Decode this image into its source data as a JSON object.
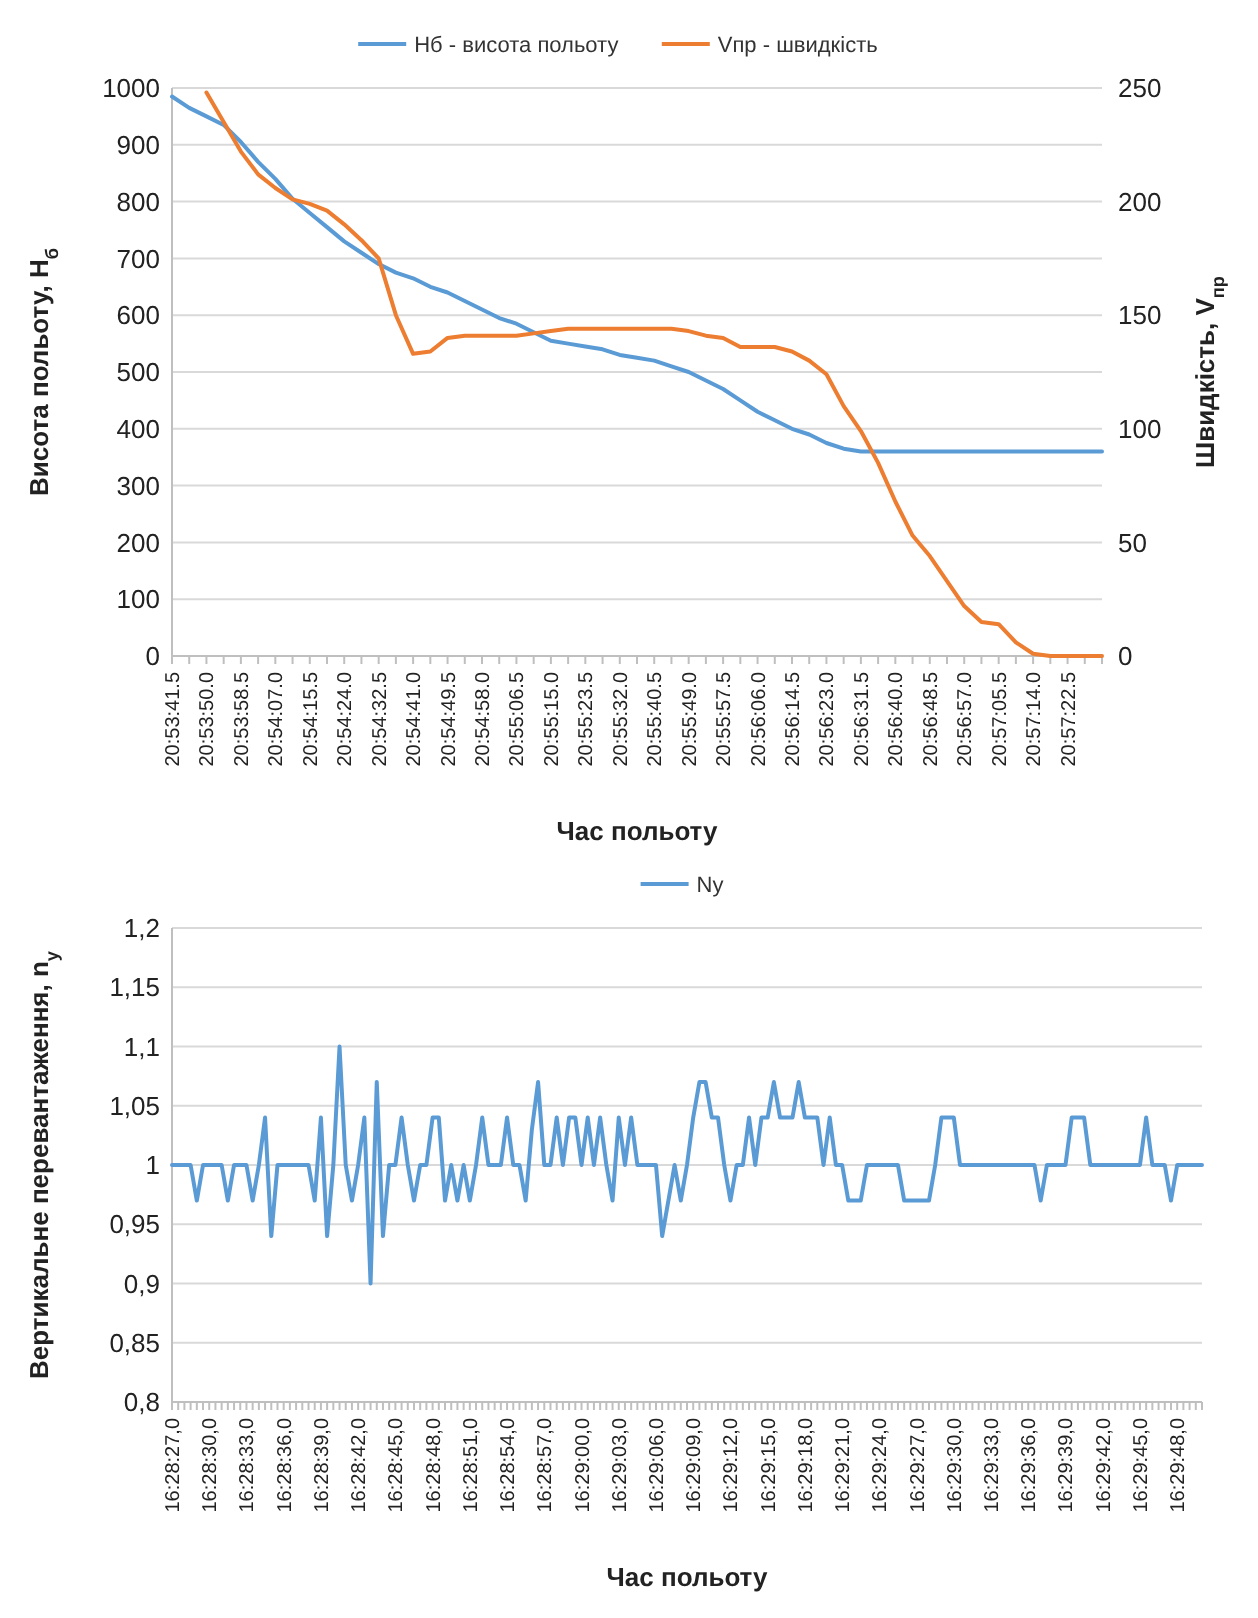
{
  "chart_data": [
    {
      "type": "line",
      "xlabel": "Час польоту",
      "ylabel": "Висота польоту, H$_{б}$",
      "y2label": "Швидкість, V$_{пр}$",
      "grid": "y",
      "legend": "top",
      "categories": [
        "20:53:41.5",
        null,
        "20:53:50.0",
        null,
        "20:53:58.5",
        null,
        "20:54:07.0",
        null,
        "20:54:15.5",
        null,
        "20:54:24.0",
        null,
        "20:54:32.5",
        null,
        "20:54:41.0",
        null,
        "20:54:49.5",
        null,
        "20:54:58.0",
        null,
        "20:55:06.5",
        null,
        "20:55:15.0",
        null,
        "20:55:23.5",
        null,
        "20:55:32.0",
        null,
        "20:55:40.5",
        null,
        "20:55:49.0",
        null,
        "20:55:57.5",
        null,
        "20:56:06.0",
        null,
        "20:56:14.5",
        null,
        "20:56:23.0",
        null,
        "20:56:31.5",
        null,
        "20:56:40.0",
        null,
        "20:56:48.5",
        null,
        "20:56:57.0",
        null,
        "20:57:05.5",
        null,
        "20:57:14.0",
        null,
        "20:57:22.5",
        null,
        null
      ],
      "ylim": [
        0,
        1000
      ],
      "yticks": [
        0,
        100,
        200,
        300,
        400,
        500,
        600,
        700,
        800,
        900,
        1000
      ],
      "y2lim": [
        0,
        250
      ],
      "y2ticks": [
        0,
        50,
        100,
        150,
        200,
        250
      ],
      "series": [
        {
          "name": "Нб - висота польоту",
          "color": "#5b9bd5",
          "values": [
            985,
            965,
            950,
            935,
            905,
            870,
            840,
            805,
            780,
            755,
            730,
            710,
            690,
            675,
            665,
            650,
            640,
            625,
            610,
            595,
            585,
            570,
            555,
            550,
            545,
            540,
            530,
            525,
            520,
            510,
            500,
            485,
            470,
            450,
            430,
            415,
            400,
            390,
            375,
            365,
            360,
            360,
            360,
            360,
            360,
            360,
            360,
            360,
            360,
            360,
            360,
            360,
            360,
            360,
            360
          ]
        },
        {
          "name": "Vпр - швидкість",
          "color": "#ed7d31",
          "axis": "y2",
          "values": [
            null,
            null,
            248,
            235,
            222,
            212,
            206,
            201,
            199,
            196,
            190,
            183,
            175,
            150,
            133,
            134,
            140,
            141,
            141,
            141,
            141,
            142,
            143,
            144,
            144,
            144,
            144,
            144,
            144,
            144,
            143,
            141,
            140,
            136,
            136,
            136,
            134,
            130,
            124,
            110,
            99,
            85,
            68,
            53,
            44,
            33,
            22,
            15,
            14,
            6,
            1,
            0,
            0,
            0,
            0
          ]
        }
      ]
    },
    {
      "type": "line",
      "xlabel": "Час польоту",
      "ylabel": "Вертикальне перевантаження, n$_{y}$",
      "grid": "y",
      "legend": "top",
      "categories": [
        "16:28:27,0",
        null,
        null,
        null,
        null,
        null,
        "16:28:30,0",
        null,
        null,
        null,
        null,
        null,
        "16:28:33,0",
        null,
        null,
        null,
        null,
        null,
        "16:28:36,0",
        null,
        null,
        null,
        null,
        null,
        "16:28:39,0",
        null,
        null,
        null,
        null,
        null,
        "16:28:42,0",
        null,
        null,
        null,
        null,
        null,
        "16:28:45,0",
        null,
        null,
        null,
        null,
        null,
        "16:28:48,0",
        null,
        null,
        null,
        null,
        null,
        "16:28:51,0",
        null,
        null,
        null,
        null,
        null,
        "16:28:54,0",
        null,
        null,
        null,
        null,
        null,
        "16:28:57,0",
        null,
        null,
        null,
        null,
        null,
        "16:29:00,0",
        null,
        null,
        null,
        null,
        null,
        "16:29:03,0",
        null,
        null,
        null,
        null,
        null,
        "16:29:06,0",
        null,
        null,
        null,
        null,
        null,
        "16:29:09,0",
        null,
        null,
        null,
        null,
        null,
        "16:29:12,0",
        null,
        null,
        null,
        null,
        null,
        "16:29:15,0",
        null,
        null,
        null,
        null,
        null,
        "16:29:18,0",
        null,
        null,
        null,
        null,
        null,
        "16:29:21,0",
        null,
        null,
        null,
        null,
        null,
        "16:29:24,0",
        null,
        null,
        null,
        null,
        null,
        "16:29:27,0",
        null,
        null,
        null,
        null,
        null,
        "16:29:30,0",
        null,
        null,
        null,
        null,
        null,
        "16:29:33,0",
        null,
        null,
        null,
        null,
        null,
        "16:29:36,0",
        null,
        null,
        null,
        null,
        null,
        "16:29:39,0",
        null,
        null,
        null,
        null,
        null,
        "16:29:42,0",
        null,
        null,
        null,
        null,
        null,
        "16:29:45,0",
        null,
        null,
        null,
        null,
        null,
        "16:29:48,0",
        null,
        null,
        null,
        null
      ],
      "ylim": [
        0.8,
        1.2
      ],
      "yticks": [
        {
          "value": 0.8,
          "label": "0,8"
        },
        {
          "value": 0.85,
          "label": "0,85"
        },
        {
          "value": 0.9,
          "label": "0,9"
        },
        {
          "value": 0.95,
          "label": "0,95"
        },
        1,
        {
          "value": 1.05,
          "label": "1,05"
        },
        {
          "value": 1.1,
          "label": "1,1"
        },
        {
          "value": 1.15,
          "label": "1,15"
        },
        {
          "value": 1.2,
          "label": "1,2"
        }
      ],
      "series": [
        {
          "name": "Ny",
          "color": "#5b9bd5",
          "values": [
            1,
            1,
            1,
            1,
            0.97,
            1,
            1,
            1,
            1,
            0.97,
            1,
            1,
            1,
            0.97,
            1,
            1.04,
            0.94,
            1,
            1,
            1,
            1,
            1,
            1,
            0.97,
            1.04,
            0.94,
            1,
            1.1,
            1,
            0.97,
            1,
            1.04,
            0.9,
            1.07,
            0.94,
            1,
            1,
            1.04,
            1,
            0.97,
            1,
            1,
            1.04,
            1.04,
            0.97,
            1,
            0.97,
            1,
            0.97,
            1,
            1.04,
            1,
            1,
            1,
            1.04,
            1,
            1,
            0.97,
            1.03,
            1.07,
            1,
            1,
            1.04,
            1,
            1.04,
            1.04,
            1,
            1.04,
            1,
            1.04,
            1,
            0.97,
            1.04,
            1,
            1.04,
            1,
            1,
            1,
            1,
            0.94,
            0.97,
            1,
            0.97,
            1,
            1.04,
            1.07,
            1.07,
            1.04,
            1.04,
            1,
            0.97,
            1,
            1,
            1.04,
            1,
            1.04,
            1.04,
            1.07,
            1.04,
            1.04,
            1.04,
            1.07,
            1.04,
            1.04,
            1.04,
            1,
            1.04,
            1,
            1,
            0.97,
            0.97,
            0.97,
            1,
            1,
            1,
            1,
            1,
            1,
            0.97,
            0.97,
            0.97,
            0.97,
            0.97,
            1,
            1.04,
            1.04,
            1.04,
            1,
            1,
            1,
            1,
            1,
            1,
            1,
            1,
            1,
            1,
            1,
            1,
            1,
            0.97,
            1,
            1,
            1,
            1,
            1.04,
            1.04,
            1.04,
            1,
            1,
            1,
            1,
            1,
            1,
            1,
            1,
            1,
            1.04,
            1,
            1,
            1,
            0.97,
            1,
            1,
            1,
            1,
            1
          ]
        }
      ]
    }
  ]
}
